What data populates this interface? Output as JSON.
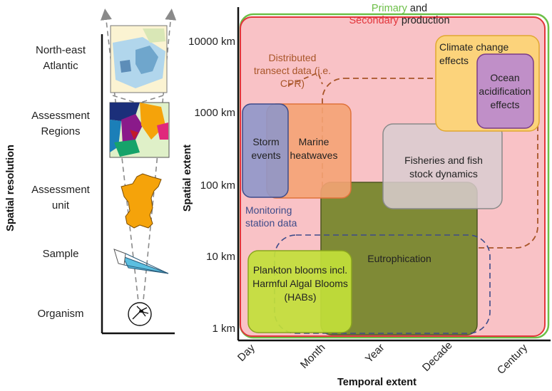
{
  "left_panel": {
    "axis_title": "Spatial resolution",
    "levels": [
      {
        "label": "North-east Atlantic",
        "icon": "map-icon"
      },
      {
        "label": "Assessment Regions",
        "icon": "regions-map-icon"
      },
      {
        "label": "Assessment unit",
        "icon": "unit-shape-icon"
      },
      {
        "label": "Sample",
        "icon": "plankton-net-icon"
      },
      {
        "label": "Organism",
        "icon": "organism-icon"
      }
    ]
  },
  "main_panel": {
    "y_axis_title": "Spatial extent",
    "x_axis_title": "Temporal extent",
    "y_ticks": [
      "10000 km",
      "1000 km",
      "100 km",
      "10 km",
      "1 km"
    ],
    "x_ticks": [
      "Day",
      "Month",
      "Year",
      "Decade",
      "Century"
    ],
    "production": {
      "primary": "Primary",
      "and": "and",
      "secondary": "Secondary",
      "production": "production"
    },
    "boxes": [
      {
        "label": "Storm events",
        "color": "#8f97c9"
      },
      {
        "label": "Marine heatwaves",
        "color": "#f4a374"
      },
      {
        "label": "Fisheries and fish stock dynamics",
        "color": "#d9cdd0"
      },
      {
        "label": "Eutrophication",
        "color": "#7f8a36"
      },
      {
        "label": "Plankton blooms incl. Harmful Algal Blooms (HABs)",
        "color": "#c2e03a"
      },
      {
        "label": "Climate change effects",
        "color": "#fcd37b"
      },
      {
        "label": "Ocean acidification effects",
        "color": "#c08fc8"
      }
    ],
    "dashed": [
      {
        "label": "Distributed transect data (i.e. CPR)",
        "color": "#a85528"
      },
      {
        "label": "Monitoring station data",
        "color": "#3d4b8a"
      }
    ],
    "colors": {
      "primary": "#6cbf47",
      "secondary": "#e2353b",
      "background": "#f9c2c6"
    }
  }
}
